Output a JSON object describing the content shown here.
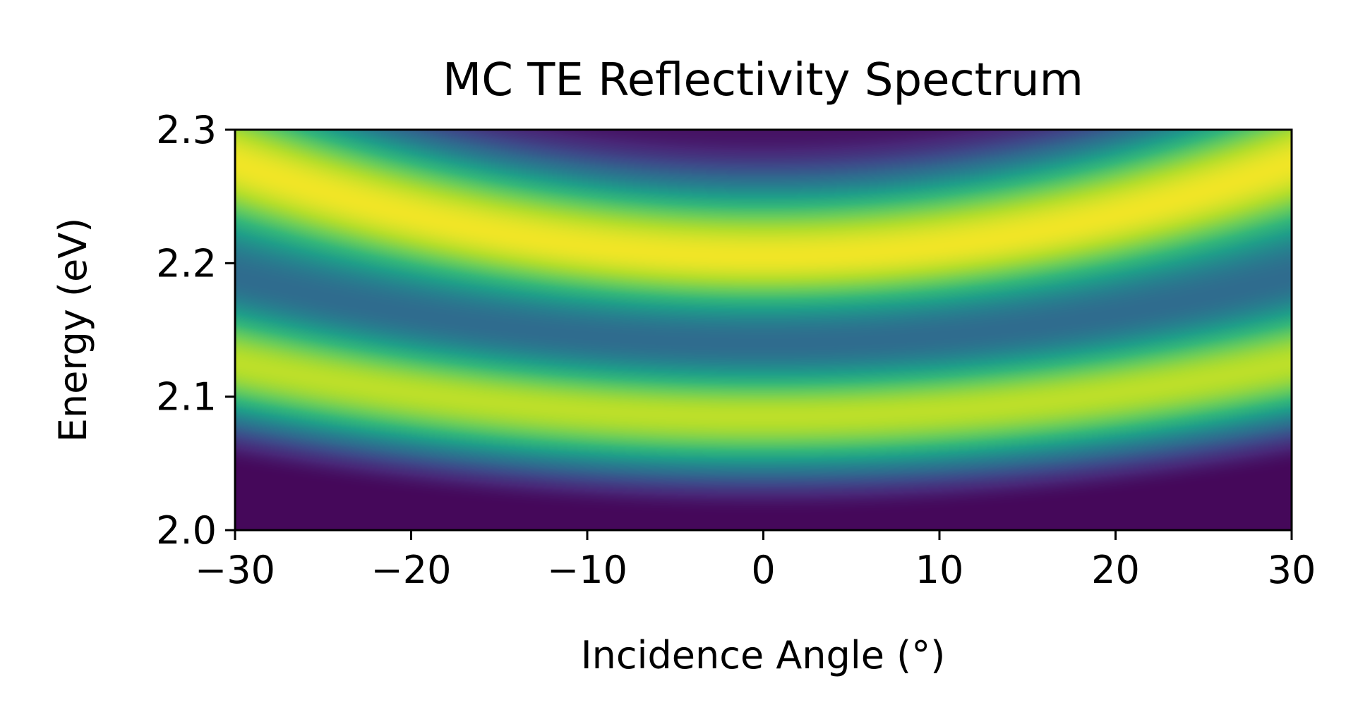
{
  "chart_data": {
    "type": "heatmap",
    "title": "MC TE Reflectivity Spectrum",
    "xlabel": "Incidence Angle (°)",
    "ylabel": "Energy (eV)",
    "xlim": [
      -30,
      30
    ],
    "ylim": [
      2.0,
      2.3
    ],
    "xticks": [
      -30,
      -20,
      -10,
      0,
      10,
      20,
      30
    ],
    "xtick_labels": [
      "−30",
      "−20",
      "−10",
      "0",
      "10",
      "20",
      "30"
    ],
    "yticks": [
      2.0,
      2.1,
      2.2,
      2.3
    ],
    "ytick_labels": [
      "2.0",
      "2.1",
      "2.2",
      "2.3"
    ],
    "colormap": "viridis",
    "value_range": [
      0,
      1
    ],
    "bands": [
      {
        "feature": "reflectivity minimum",
        "energy_at_0deg": 2.01,
        "energy_at_30deg": 2.045,
        "level": 0.02
      },
      {
        "feature": "reflectivity maximum",
        "energy_at_0deg": 2.085,
        "energy_at_30deg": 2.125,
        "level": 0.9
      },
      {
        "feature": "reflectivity dip",
        "energy_at_0deg": 2.14,
        "energy_at_30deg": 2.19,
        "level": 0.35
      },
      {
        "feature": "reflectivity maximum",
        "energy_at_0deg": 2.205,
        "energy_at_30deg": 2.275,
        "level": 0.98
      },
      {
        "feature": "reflectivity minimum",
        "energy_at_0deg": 2.3,
        "energy_at_30deg": 2.38,
        "level": 0.05
      }
    ],
    "grid": false,
    "colorbar": false
  },
  "colors": {
    "viridis": [
      "#440154",
      "#482878",
      "#3e4989",
      "#31688e",
      "#26828e",
      "#1f9e89",
      "#35b779",
      "#6ece58",
      "#b5de2b",
      "#fde725"
    ]
  }
}
